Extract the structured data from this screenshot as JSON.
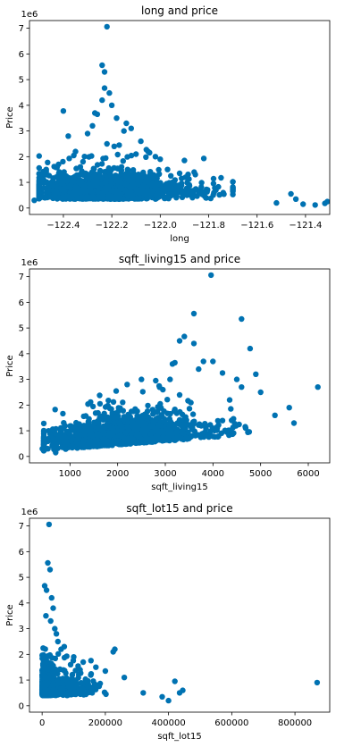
{
  "style": {
    "marker_color": "#0072b2",
    "axis_color": "#000000",
    "background": "#ffffff"
  },
  "chart_data": [
    {
      "type": "scatter",
      "title": "long and price",
      "xlabel": "long",
      "ylabel": "Price",
      "y_offset_label": "1e6",
      "xlim": [
        -122.54,
        -121.3
      ],
      "ylim": [
        -0.25,
        7.3
      ],
      "xticks": [
        -122.4,
        -122.2,
        -122.0,
        -121.8,
        -121.6,
        -121.4
      ],
      "xtick_labels": [
        "−122.4",
        "−122.2",
        "−122.0",
        "−121.8",
        "−121.6",
        "−121.4"
      ],
      "yticks": [
        0,
        1,
        2,
        3,
        4,
        5,
        6,
        7
      ],
      "ytick_labels": [
        "0",
        "1",
        "2",
        "3",
        "4",
        "5",
        "6",
        "7"
      ],
      "grid": false,
      "legend": "none",
      "points_x": [
        -122.22,
        -122.24,
        -122.23,
        -122.23,
        -122.21,
        -122.24,
        -122.2,
        -122.27,
        -122.26,
        -122.4,
        -122.14,
        -122.15,
        -122.12,
        -122.18,
        -122.3,
        -122.28,
        -122.38,
        -122.22,
        -122.19,
        -122.1,
        -122.08,
        -122.05,
        -122.02,
        -122.0,
        -121.97,
        -121.9,
        -121.86,
        -121.82,
        -121.78,
        -121.77,
        -122.45,
        -122.5,
        -122.52,
        -122.33,
        -121.46,
        -121.44,
        -121.41,
        -121.36,
        -121.31,
        -121.32,
        -121.52,
        -121.7,
        -121.74,
        -122.47,
        -122.42,
        -122.35,
        -122.16,
        -122.06,
        -121.95,
        -121.88,
        -121.92
      ],
      "points_y": [
        7.06,
        5.56,
        5.3,
        4.67,
        4.48,
        4.2,
        4.0,
        3.7,
        3.65,
        3.78,
        3.3,
        3.0,
        3.1,
        3.5,
        2.9,
        3.2,
        2.8,
        2.5,
        2.4,
        2.1,
        2.6,
        2.2,
        2.0,
        1.9,
        1.5,
        1.85,
        1.4,
        1.93,
        0.95,
        0.7,
        1.0,
        0.45,
        0.3,
        1.6,
        0.55,
        0.35,
        0.15,
        0.12,
        0.25,
        0.18,
        0.2,
        0.75,
        0.6,
        1.3,
        1.7,
        2.2,
        1.6,
        1.2,
        1.0,
        0.9,
        1.35
      ],
      "cloud": {
        "x_center": -122.22,
        "x_spread": 0.13,
        "x_min": -122.5,
        "x_max": -121.7,
        "y_center": 0.45,
        "y_spread": 0.4,
        "count": 1600
      }
    },
    {
      "type": "scatter",
      "title": "sqft_living15 and price",
      "xlabel": "sqft_living15",
      "ylabel": "Price",
      "y_offset_label": "1e6",
      "xlim": [
        150,
        6450
      ],
      "ylim": [
        -0.25,
        7.3
      ],
      "xticks": [
        1000,
        2000,
        3000,
        4000,
        5000,
        6000
      ],
      "xtick_labels": [
        "1000",
        "2000",
        "3000",
        "4000",
        "5000",
        "6000"
      ],
      "yticks": [
        0,
        1,
        2,
        3,
        4,
        5,
        6,
        7
      ],
      "ytick_labels": [
        "0",
        "1",
        "2",
        "3",
        "4",
        "5",
        "6",
        "7"
      ],
      "grid": false,
      "legend": "none",
      "points_x": [
        3960,
        3600,
        4600,
        4780,
        3400,
        3300,
        3600,
        3200,
        4900,
        4000,
        6200,
        5600,
        5700,
        5300,
        5000,
        4600,
        4500,
        2500,
        2200,
        2800,
        3100,
        3800,
        4200,
        460,
        420,
        700,
        3150,
        3700,
        4350,
        2950
      ],
      "points_y": [
        7.06,
        5.56,
        5.35,
        4.2,
        4.67,
        4.5,
        4.4,
        3.65,
        3.2,
        3.7,
        2.7,
        1.9,
        1.3,
        1.6,
        2.5,
        2.7,
        3.0,
        3.0,
        2.8,
        2.95,
        3.0,
        3.7,
        3.25,
        0.5,
        0.3,
        0.15,
        3.6,
        3.4,
        2.2,
        2.6
      ],
      "cloud": {
        "x_center": 2100,
        "x_spread": 650,
        "x_min": 450,
        "x_max": 5200,
        "y_center": 0.55,
        "y_spread": 0.45,
        "y_slope_per_1000": 0.15,
        "count": 1600
      }
    },
    {
      "type": "scatter",
      "title": "sqft_lot15 and price",
      "xlabel": "sqft_lot15",
      "ylabel": "Price",
      "y_offset_label": "1e6",
      "xlim": [
        -40000,
        910000
      ],
      "ylim": [
        -0.25,
        7.3
      ],
      "xticks": [
        0,
        200000,
        400000,
        600000,
        800000
      ],
      "xtick_labels": [
        "0",
        "200000",
        "400000",
        "600000",
        "800000"
      ],
      "yticks": [
        0,
        1,
        2,
        3,
        4,
        5,
        6,
        7
      ],
      "ytick_labels": [
        "0",
        "1",
        "2",
        "3",
        "4",
        "5",
        "6",
        "7"
      ],
      "grid": false,
      "legend": "none",
      "points_x": [
        22000,
        18000,
        25000,
        8000,
        14000,
        30000,
        35000,
        12000,
        27000,
        870000,
        435000,
        420000,
        445000,
        400000,
        380000,
        320000,
        260000,
        230000,
        225000,
        200000,
        170000,
        130000,
        120000,
        100000,
        90000,
        70000,
        60000,
        50000,
        45000,
        40000
      ],
      "points_y": [
        7.06,
        5.56,
        5.3,
        4.67,
        4.5,
        4.2,
        3.8,
        3.5,
        3.3,
        0.9,
        0.5,
        0.95,
        0.6,
        0.2,
        0.35,
        0.5,
        1.1,
        2.2,
        2.1,
        1.35,
        1.5,
        1.7,
        1.4,
        1.9,
        1.6,
        2.3,
        2.2,
        2.5,
        2.8,
        3.0
      ],
      "cloud": {
        "x_center": 9000,
        "x_spread": 16000,
        "x_min": 0,
        "x_max": 300000,
        "y_center": 0.5,
        "y_spread": 0.4,
        "count": 1600
      }
    }
  ]
}
